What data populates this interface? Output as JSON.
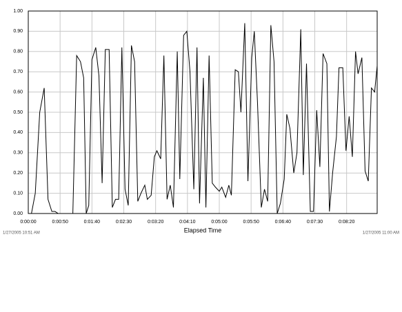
{
  "chart_data": {
    "type": "line",
    "x_label": "Elapsed Time",
    "start_label": "1/27/2005 10:51 AM",
    "end_label": "1/27/2005 11:00 AM",
    "x": [
      0,
      5,
      11,
      18,
      25,
      31,
      37,
      42,
      47,
      53,
      64,
      70,
      76,
      82,
      87,
      91,
      95,
      100,
      106,
      111,
      116,
      121,
      127,
      132,
      137,
      142,
      147,
      152,
      157,
      162,
      167,
      172,
      177,
      183,
      187,
      193,
      198,
      202,
      208,
      213,
      218,
      223,
      228,
      234,
      238,
      244,
      249,
      254,
      260,
      265,
      269,
      275,
      279,
      284,
      289,
      294,
      300,
      304,
      310,
      315,
      319,
      325,
      330,
      334,
      340,
      345,
      351,
      355,
      360,
      366,
      371,
      376,
      381,
      386,
      391,
      396,
      402,
      406,
      411,
      417,
      422,
      428,
      432,
      437,
      443,
      448,
      453,
      458,
      463,
      469,
      473,
      478,
      484,
      488,
      494,
      499,
      504,
      509,
      514,
      518,
      524,
      529,
      534,
      539,
      544,
      548
    ],
    "series": [
      {
        "color": "#000000",
        "values": [
          0,
          0,
          0.1,
          0.5,
          0.62,
          0.07,
          0.01,
          0.01,
          0,
          0,
          0,
          0,
          0.78,
          0.75,
          0.67,
          0,
          0.04,
          0.76,
          0.82,
          0.68,
          0.15,
          0.81,
          0.81,
          0.03,
          0.07,
          0.07,
          0.82,
          0.12,
          0.04,
          0.83,
          0.75,
          0.06,
          0.1,
          0.14,
          0.07,
          0.09,
          0.28,
          0.31,
          0.27,
          0.78,
          0.07,
          0.14,
          0.03,
          0.8,
          0.17,
          0.88,
          0.9,
          0.7,
          0.12,
          0.82,
          0.05,
          0.67,
          0.03,
          0.78,
          0.15,
          0.13,
          0.11,
          0.13,
          0.08,
          0.14,
          0.09,
          0.71,
          0.7,
          0.5,
          0.94,
          0.16,
          0.77,
          0.9,
          0.55,
          0.03,
          0.12,
          0.06,
          0.93,
          0.75,
          0,
          0.05,
          0.17,
          0.49,
          0.42,
          0.2,
          0.3,
          0.91,
          0.19,
          0.74,
          0.01,
          0.01,
          0.51,
          0.23,
          0.79,
          0.74,
          0.01,
          0.2,
          0.38,
          0.72,
          0.72,
          0.31,
          0.48,
          0.28,
          0.8,
          0.69,
          0.77,
          0.21,
          0.16,
          0.62,
          0.6,
          0.73
        ]
      }
    ],
    "xlim": [
      0,
      548
    ],
    "ylim": [
      0,
      1
    ],
    "xticks": [
      {
        "value": 0,
        "label": "0:00:00"
      },
      {
        "value": 50,
        "label": "0:00:50"
      },
      {
        "value": 100,
        "label": "0:01:40"
      },
      {
        "value": 150,
        "label": "0:02:30"
      },
      {
        "value": 200,
        "label": "0:03:20"
      },
      {
        "value": 250,
        "label": "0:04:10"
      },
      {
        "value": 300,
        "label": "0:05:00"
      },
      {
        "value": 350,
        "label": "0:05:50"
      },
      {
        "value": 400,
        "label": "0:06:40"
      },
      {
        "value": 450,
        "label": "0:07:30"
      },
      {
        "value": 500,
        "label": "0:08:20"
      }
    ],
    "yticks": [
      {
        "value": 0,
        "label": "0.00"
      },
      {
        "value": 0.1,
        "label": "0.10"
      },
      {
        "value": 0.2,
        "label": "0.20"
      },
      {
        "value": 0.3,
        "label": "0.30"
      },
      {
        "value": 0.4,
        "label": "0.40"
      },
      {
        "value": 0.5,
        "label": "0.50"
      },
      {
        "value": 0.6,
        "label": "0.60"
      },
      {
        "value": 0.7,
        "label": "0.70"
      },
      {
        "value": 0.8,
        "label": "0.80"
      },
      {
        "value": 0.9,
        "label": "0.90"
      },
      {
        "value": 1,
        "label": "1.00"
      }
    ],
    "grid": true
  }
}
